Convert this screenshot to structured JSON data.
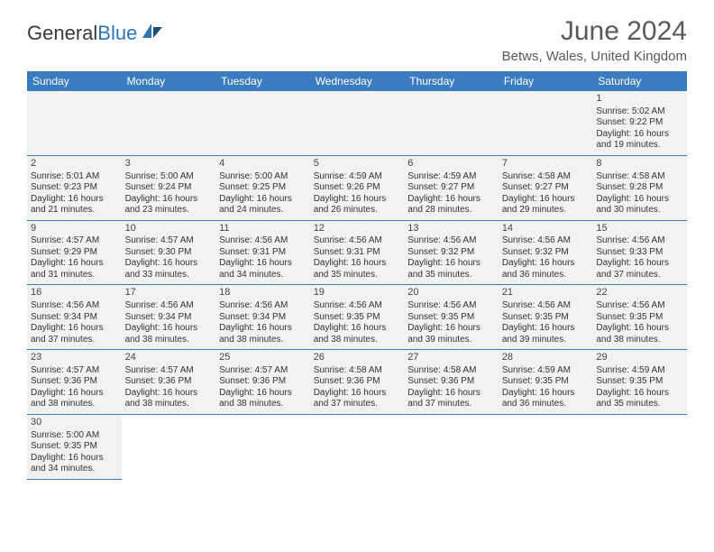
{
  "logo": {
    "text_general": "General",
    "text_blue": "Blue"
  },
  "title": "June 2024",
  "location": "Betws, Wales, United Kingdom",
  "colors": {
    "header_bg": "#3b7bbf",
    "header_text": "#ffffff",
    "cell_bg": "#f2f2f2",
    "cell_border": "#3b7bbf",
    "page_bg": "#ffffff",
    "title_color": "#5a5a5a",
    "body_text": "#333333"
  },
  "day_headers": [
    "Sunday",
    "Monday",
    "Tuesday",
    "Wednesday",
    "Thursday",
    "Friday",
    "Saturday"
  ],
  "weeks": [
    [
      null,
      null,
      null,
      null,
      null,
      null,
      {
        "n": "1",
        "sr": "5:02 AM",
        "ss": "9:22 PM",
        "dl": "16 hours and 19 minutes."
      }
    ],
    [
      {
        "n": "2",
        "sr": "5:01 AM",
        "ss": "9:23 PM",
        "dl": "16 hours and 21 minutes."
      },
      {
        "n": "3",
        "sr": "5:00 AM",
        "ss": "9:24 PM",
        "dl": "16 hours and 23 minutes."
      },
      {
        "n": "4",
        "sr": "5:00 AM",
        "ss": "9:25 PM",
        "dl": "16 hours and 24 minutes."
      },
      {
        "n": "5",
        "sr": "4:59 AM",
        "ss": "9:26 PM",
        "dl": "16 hours and 26 minutes."
      },
      {
        "n": "6",
        "sr": "4:59 AM",
        "ss": "9:27 PM",
        "dl": "16 hours and 28 minutes."
      },
      {
        "n": "7",
        "sr": "4:58 AM",
        "ss": "9:27 PM",
        "dl": "16 hours and 29 minutes."
      },
      {
        "n": "8",
        "sr": "4:58 AM",
        "ss": "9:28 PM",
        "dl": "16 hours and 30 minutes."
      }
    ],
    [
      {
        "n": "9",
        "sr": "4:57 AM",
        "ss": "9:29 PM",
        "dl": "16 hours and 31 minutes."
      },
      {
        "n": "10",
        "sr": "4:57 AM",
        "ss": "9:30 PM",
        "dl": "16 hours and 33 minutes."
      },
      {
        "n": "11",
        "sr": "4:56 AM",
        "ss": "9:31 PM",
        "dl": "16 hours and 34 minutes."
      },
      {
        "n": "12",
        "sr": "4:56 AM",
        "ss": "9:31 PM",
        "dl": "16 hours and 35 minutes."
      },
      {
        "n": "13",
        "sr": "4:56 AM",
        "ss": "9:32 PM",
        "dl": "16 hours and 35 minutes."
      },
      {
        "n": "14",
        "sr": "4:56 AM",
        "ss": "9:32 PM",
        "dl": "16 hours and 36 minutes."
      },
      {
        "n": "15",
        "sr": "4:56 AM",
        "ss": "9:33 PM",
        "dl": "16 hours and 37 minutes."
      }
    ],
    [
      {
        "n": "16",
        "sr": "4:56 AM",
        "ss": "9:34 PM",
        "dl": "16 hours and 37 minutes."
      },
      {
        "n": "17",
        "sr": "4:56 AM",
        "ss": "9:34 PM",
        "dl": "16 hours and 38 minutes."
      },
      {
        "n": "18",
        "sr": "4:56 AM",
        "ss": "9:34 PM",
        "dl": "16 hours and 38 minutes."
      },
      {
        "n": "19",
        "sr": "4:56 AM",
        "ss": "9:35 PM",
        "dl": "16 hours and 38 minutes."
      },
      {
        "n": "20",
        "sr": "4:56 AM",
        "ss": "9:35 PM",
        "dl": "16 hours and 39 minutes."
      },
      {
        "n": "21",
        "sr": "4:56 AM",
        "ss": "9:35 PM",
        "dl": "16 hours and 39 minutes."
      },
      {
        "n": "22",
        "sr": "4:56 AM",
        "ss": "9:35 PM",
        "dl": "16 hours and 38 minutes."
      }
    ],
    [
      {
        "n": "23",
        "sr": "4:57 AM",
        "ss": "9:36 PM",
        "dl": "16 hours and 38 minutes."
      },
      {
        "n": "24",
        "sr": "4:57 AM",
        "ss": "9:36 PM",
        "dl": "16 hours and 38 minutes."
      },
      {
        "n": "25",
        "sr": "4:57 AM",
        "ss": "9:36 PM",
        "dl": "16 hours and 38 minutes."
      },
      {
        "n": "26",
        "sr": "4:58 AM",
        "ss": "9:36 PM",
        "dl": "16 hours and 37 minutes."
      },
      {
        "n": "27",
        "sr": "4:58 AM",
        "ss": "9:36 PM",
        "dl": "16 hours and 37 minutes."
      },
      {
        "n": "28",
        "sr": "4:59 AM",
        "ss": "9:35 PM",
        "dl": "16 hours and 36 minutes."
      },
      {
        "n": "29",
        "sr": "4:59 AM",
        "ss": "9:35 PM",
        "dl": "16 hours and 35 minutes."
      }
    ],
    [
      {
        "n": "30",
        "sr": "5:00 AM",
        "ss": "9:35 PM",
        "dl": "16 hours and 34 minutes."
      },
      null,
      null,
      null,
      null,
      null,
      null
    ]
  ],
  "labels": {
    "sunrise": "Sunrise:",
    "sunset": "Sunset:",
    "daylight": "Daylight:"
  }
}
